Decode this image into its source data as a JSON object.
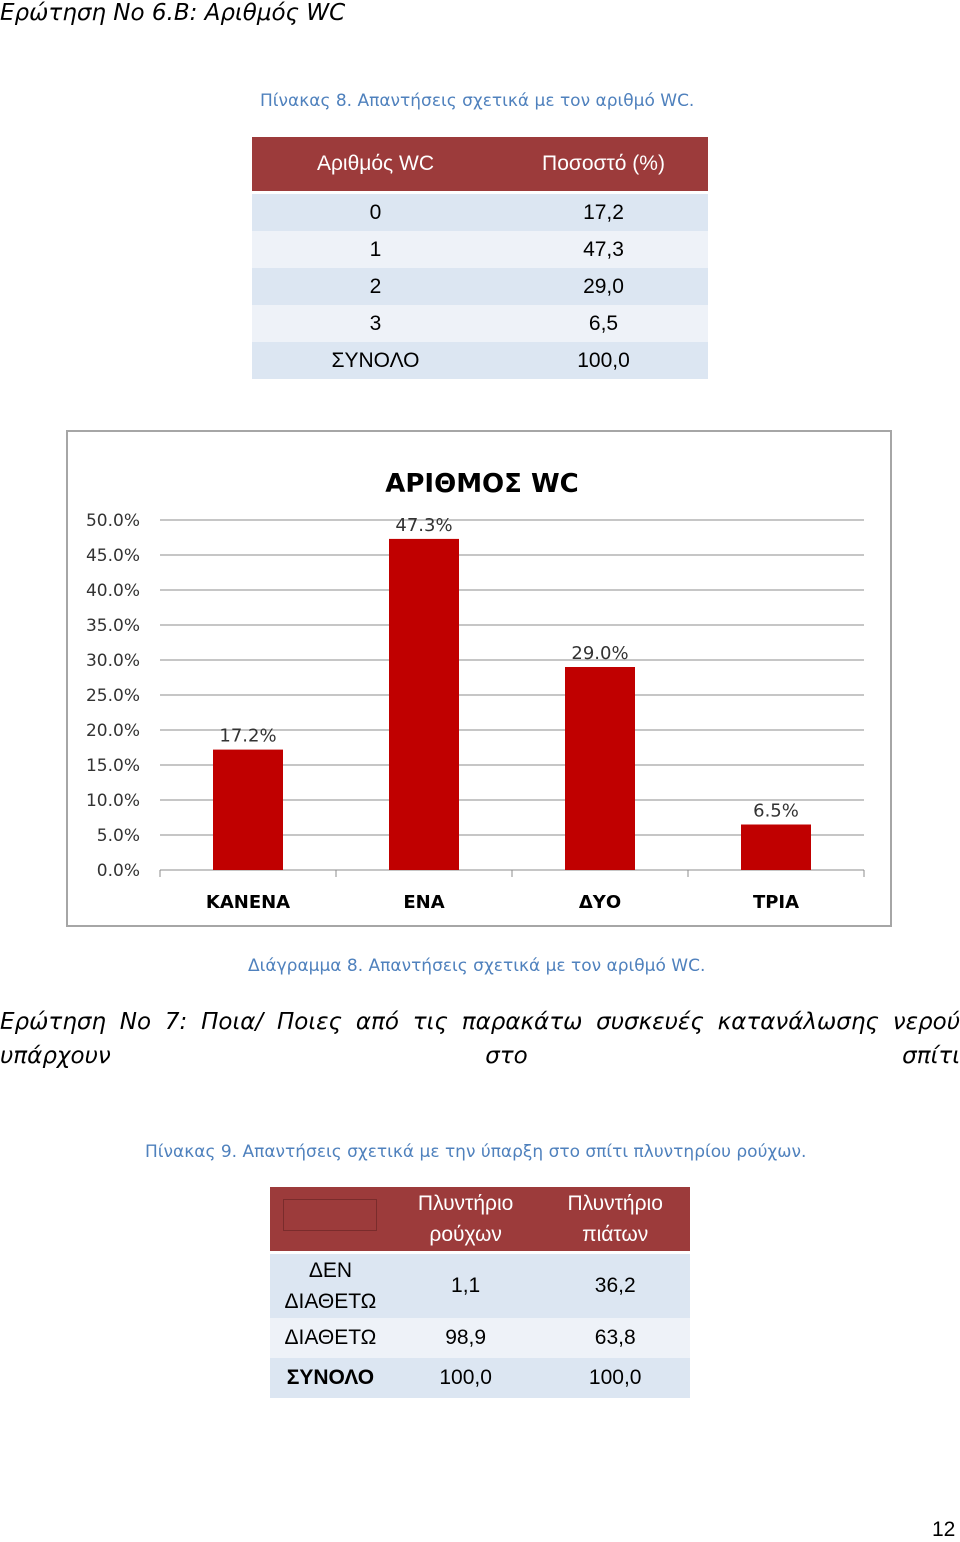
{
  "heading_6b": "Ερώτηση Νο 6.Β: Αριθμός WC",
  "table8": {
    "caption": "Πίνακας 8. Απαντήσεις σχετικά με τον αριθμό WC.",
    "headers": [
      "Αριθμός WC",
      "Ποσοστό (%)"
    ],
    "rows": [
      [
        "0",
        "17,2"
      ],
      [
        "1",
        "47,3"
      ],
      [
        "2",
        "29,0"
      ],
      [
        "3",
        "6,5"
      ],
      [
        "ΣΥΝΟΛΟ",
        "100,0"
      ]
    ]
  },
  "chart_data": {
    "type": "bar",
    "title": "ΑΡΙΘΜΟΣ WC",
    "categories": [
      "ΚΑΝΕΝΑ",
      "ΕΝΑ",
      "ΔΥΟ",
      "ΤΡΙΑ"
    ],
    "values": [
      17.2,
      47.3,
      29.0,
      6.5
    ],
    "data_labels": [
      "17.2%",
      "47.3%",
      "29.0%",
      "6.5%"
    ],
    "yticks": [
      "0.0%",
      "5.0%",
      "10.0%",
      "15.0%",
      "20.0%",
      "25.0%",
      "30.0%",
      "35.0%",
      "40.0%",
      "45.0%",
      "50.0%"
    ],
    "ylim": [
      0,
      50
    ],
    "grid": true,
    "bar_color": "#c00000"
  },
  "figure8_caption": "Διάγραμμα 8. Απαντήσεις σχετικά με τον αριθμό WC.",
  "question7": "Ερώτηση Νο 7: Ποια/ Ποιες από τις παρακάτω συσκευές κατανάλωσης νερού υπάρχουν στο σπίτι",
  "table9": {
    "caption": "Πίνακας 9. Απαντήσεις σχετικά με την ύπαρξη στο σπίτι πλυντηρίου ρούχων.",
    "headers": [
      "",
      "Πλυντήριο ρούχων",
      "Πλυντήριο πιάτων"
    ],
    "rows": [
      [
        "ΔΕΝ ΔΙΑΘΕΤΩ",
        "1,1",
        "36,2"
      ],
      [
        "ΔΙΑΘΕΤΩ",
        "98,9",
        "63,8"
      ],
      [
        "ΣΥΝΟΛΟ",
        "100,0",
        "100,0"
      ]
    ]
  },
  "page_number": "12",
  "colors": {
    "header_bg": "#9c3b3b",
    "row_a": "#dce6f2",
    "row_b": "#eef2f8",
    "caption": "#4f81bd"
  }
}
